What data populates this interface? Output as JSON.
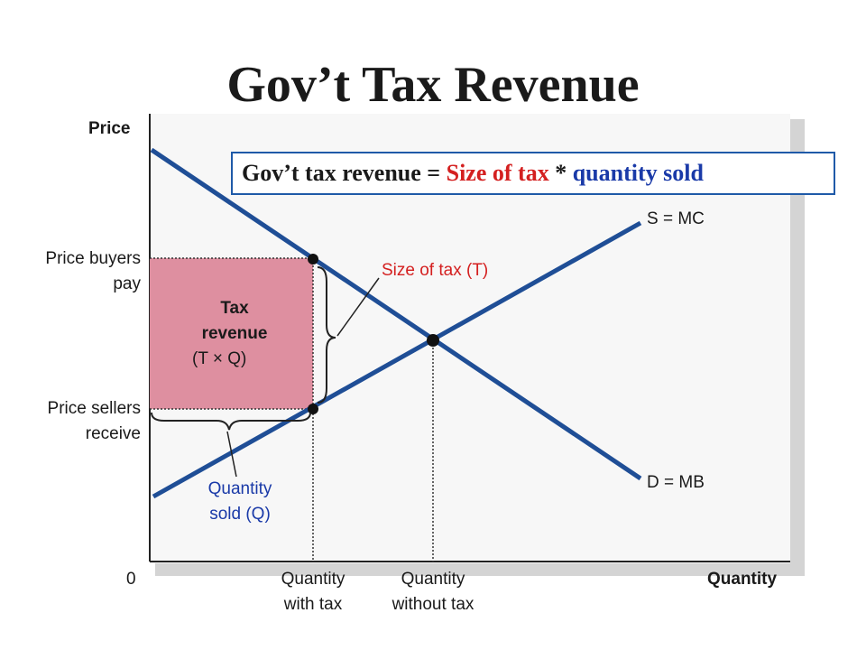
{
  "title": "Gov’t Tax Revenue",
  "formula": {
    "lhs": "Gov’t tax revenue = ",
    "size_of_tax": "Size of tax",
    "times": " * ",
    "quantity_sold": "quantity sold"
  },
  "axes": {
    "y_label": "Price",
    "x_label": "Quantity",
    "origin": "0"
  },
  "curves": {
    "supply_label": "S = MC",
    "demand_label": "D = MB"
  },
  "price_labels": {
    "buyers_line1": "Price buyers",
    "buyers_line2": "pay",
    "sellers_line1": "Price sellers",
    "sellers_line2": "receive"
  },
  "quantity_labels": {
    "with_tax_line1": "Quantity",
    "with_tax_line2": "with tax",
    "without_tax_line1": "Quantity",
    "without_tax_line2": "without tax"
  },
  "annotations": {
    "tax_revenue_line1": "Tax",
    "tax_revenue_line2": "revenue",
    "tax_revenue_formula": "(T × Q)",
    "size_of_tax": "Size of tax (T)",
    "quantity_sold_line1": "Quantity",
    "quantity_sold_line2": "sold (Q)"
  },
  "colors": {
    "curve": "#1f4e96",
    "tax_area": "#dc8fa0",
    "red_text": "#d42020",
    "blue_text": "#1a3aa8"
  }
}
